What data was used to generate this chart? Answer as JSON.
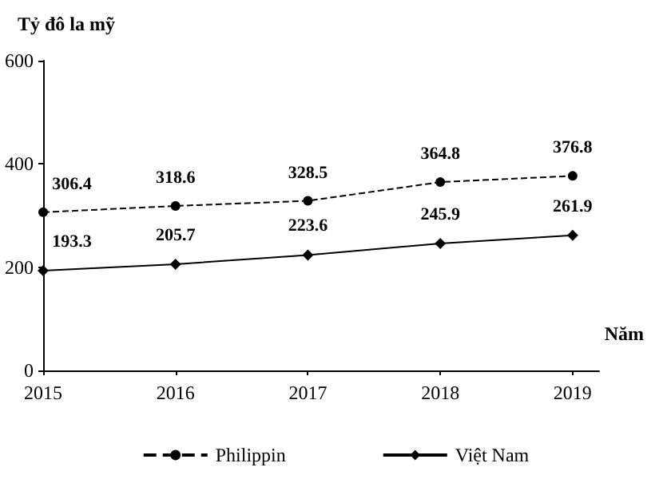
{
  "chart_data": {
    "type": "line",
    "ylabel": "Tỷ đô la mỹ",
    "xlabel": "Năm",
    "x": [
      2015,
      2016,
      2017,
      2018,
      2019
    ],
    "xlim": [
      2015,
      2019.2
    ],
    "xticks": [
      2015,
      2016,
      2017,
      2018,
      2019
    ],
    "ylim": [
      0,
      600
    ],
    "yticks": [
      0,
      200,
      400,
      600
    ],
    "series": [
      {
        "name": "Philippin",
        "color": "#000000",
        "values": [
          306.4,
          318.6,
          328.5,
          364.8,
          376.8
        ],
        "line_style": "dashed",
        "marker": "circle"
      },
      {
        "name": "Việt Nam",
        "color": "#000000",
        "values": [
          193.3,
          205.7,
          223.6,
          245.9,
          261.9
        ],
        "line_style": "solid",
        "marker": "diamond"
      }
    ],
    "data_labels": true,
    "grid": false,
    "legend": "bottom"
  }
}
